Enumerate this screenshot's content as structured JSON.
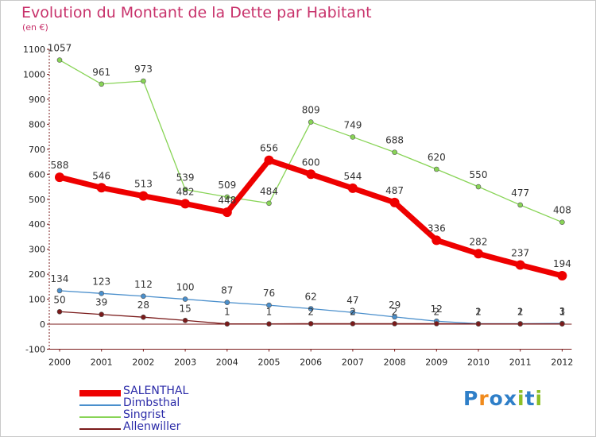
{
  "header": {
    "title": "Evolution du Montant de la Dette par Habitant",
    "subtitle": "(en €)"
  },
  "chart_data": {
    "type": "line",
    "x": [
      "2000",
      "2001",
      "2002",
      "2003",
      "2004",
      "2005",
      "2006",
      "2007",
      "2008",
      "2009",
      "2010",
      "2011",
      "2012"
    ],
    "ylim": [
      -100,
      1100
    ],
    "yticks": [
      "-100",
      "0",
      "100",
      "200",
      "300",
      "400",
      "500",
      "600",
      "700",
      "800",
      "900",
      "1000",
      "1100"
    ],
    "grid": false,
    "legend_position": "bottom-left",
    "series": [
      {
        "name": "SALENTHAL",
        "color": "#ee0000",
        "values": [
          588,
          546,
          513,
          482,
          448,
          656,
          600,
          544,
          487,
          336,
          282,
          237,
          194
        ],
        "labels": [
          "588",
          "546",
          "513",
          "482",
          "448",
          "656",
          "600",
          "544",
          "487",
          "336",
          "282",
          "237",
          "194"
        ]
      },
      {
        "name": "Dimbsthal",
        "color": "#4a8fcc",
        "values": [
          134,
          123,
          112,
          100,
          87,
          76,
          62,
          47,
          29,
          12,
          2,
          2,
          3
        ],
        "labels": [
          "134",
          "123",
          "112",
          "100",
          "87",
          "76",
          "62",
          "47",
          "29",
          "12",
          "2",
          "2",
          "3"
        ]
      },
      {
        "name": "Singrist",
        "color": "#88d456",
        "values": [
          1057,
          961,
          973,
          539,
          509,
          484,
          809,
          749,
          688,
          620,
          550,
          477,
          408
        ],
        "labels": [
          "1057",
          "961",
          "973",
          "539",
          "509",
          "484",
          "809",
          "749",
          "688",
          "620",
          "550",
          "477",
          "408"
        ]
      },
      {
        "name": "Allenwiller",
        "color": "#7a1a1a",
        "values": [
          50,
          39,
          28,
          15,
          1,
          1,
          2,
          2,
          2,
          2,
          1,
          1,
          1
        ],
        "labels": [
          "50",
          "39",
          "28",
          "15",
          "1",
          "1",
          "2",
          "2",
          "2",
          "2",
          "1",
          "1",
          "1"
        ]
      }
    ]
  },
  "logo": {
    "text": "Proxiti",
    "letters": [
      "P",
      "r",
      "o",
      "x",
      "i",
      "t",
      "i"
    ],
    "colors": [
      "#2f7fc8",
      "#f08a1c",
      "#2f7fc8",
      "#2f7fc8",
      "#8cbf26",
      "#2f7fc8",
      "#8cbf26"
    ]
  }
}
